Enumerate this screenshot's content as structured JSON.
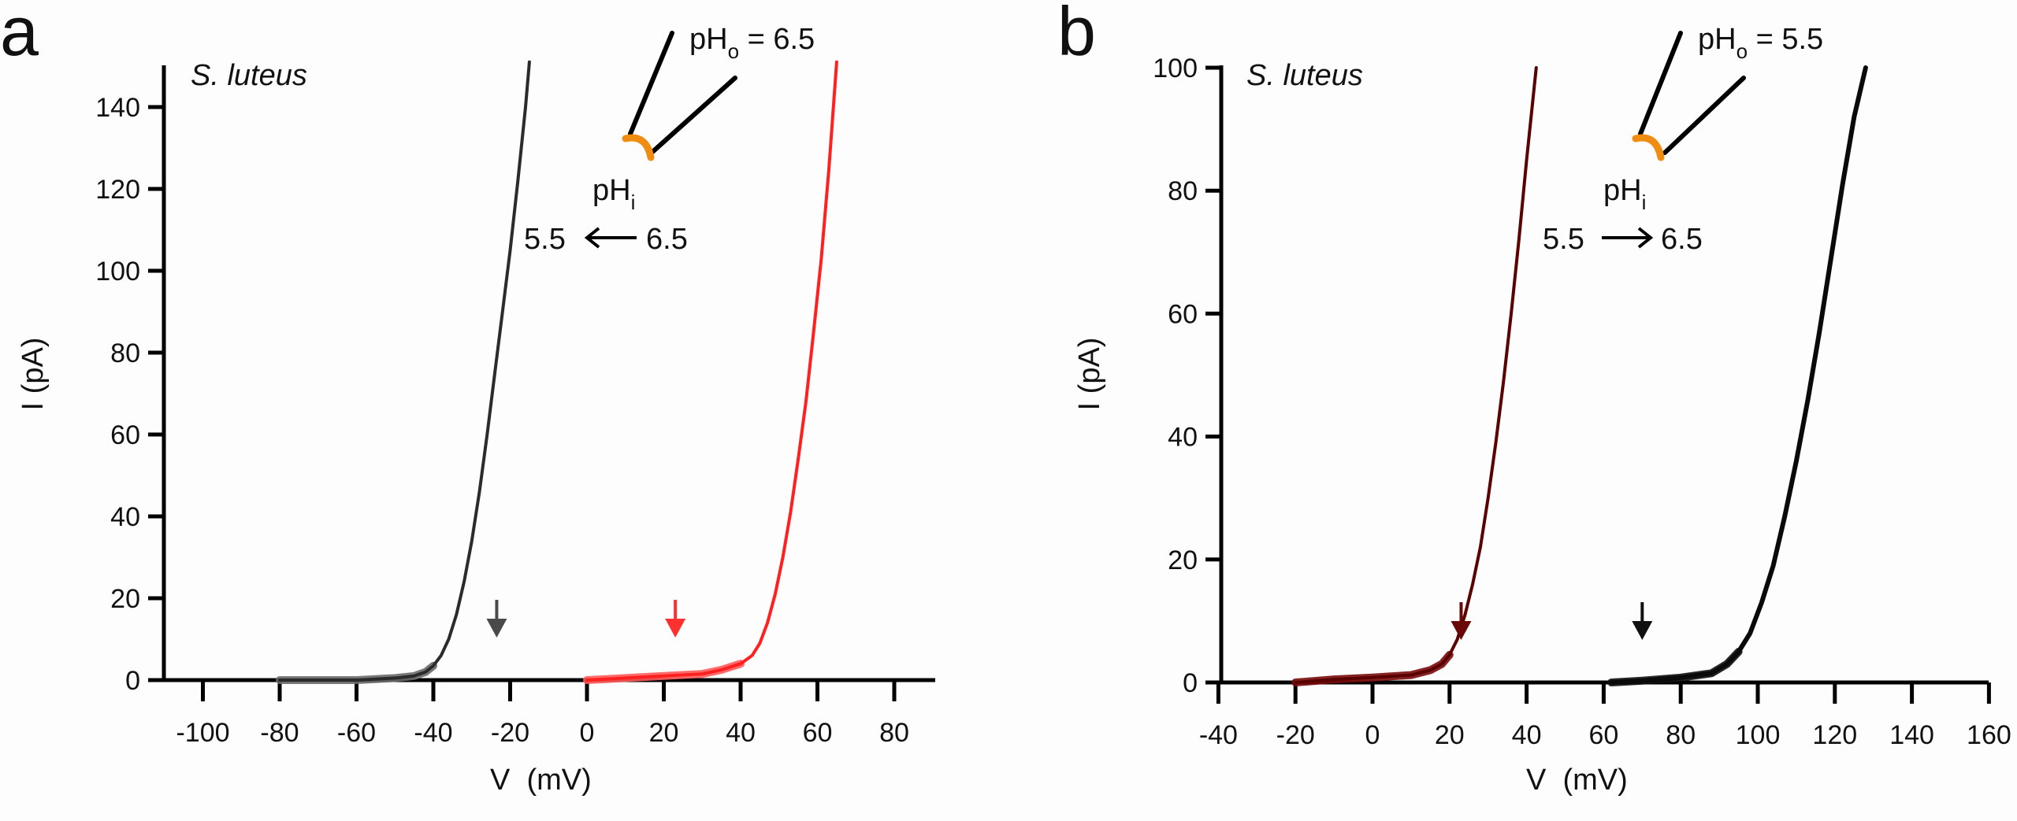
{
  "figure": {
    "panels": [
      "a",
      "b"
    ]
  },
  "chart_data": [
    {
      "type": "line",
      "panel_label": "a",
      "title": "",
      "annotation_species": "S. luteus",
      "xlabel": "V  (mV)",
      "ylabel": "I (pA)",
      "xlim": [
        -114,
        90
      ],
      "ylim": [
        0,
        150
      ],
      "xticks": [
        -100,
        -80,
        -60,
        -40,
        -20,
        0,
        20,
        40,
        60,
        80
      ],
      "yticks": [
        0,
        20,
        40,
        60,
        80,
        100,
        120,
        140
      ],
      "grid": false,
      "inset": {
        "pHo_label": "pH",
        "pHo_sub": "o",
        "pHo_value": " = 6.5",
        "pHi_label": "pH",
        "pHi_sub": "i",
        "from_value": "6.5",
        "to_value": "5.5",
        "arrow_direction": "left",
        "from_color": "#ff2a2a",
        "to_color": "#404040"
      },
      "series": [
        {
          "name": "pHi 5.5",
          "color": "#2b2b2b",
          "baseline_color": "#6a6a6a",
          "x": [
            -80,
            -70,
            -60,
            -50,
            -45,
            -42,
            -40,
            -38,
            -36,
            -34,
            -32,
            -30,
            -28,
            -26,
            -24,
            -22,
            -20,
            -18,
            -16,
            -15
          ],
          "y": [
            0,
            0,
            0,
            0.5,
            1,
            2,
            3.5,
            6,
            10,
            16,
            24,
            34,
            46,
            60,
            75,
            90,
            105,
            122,
            140,
            151
          ]
        },
        {
          "name": "pHi 6.5",
          "color": "#ff2020",
          "baseline_color": "#ff5a5a",
          "x": [
            0,
            10,
            20,
            30,
            35,
            40,
            43,
            45,
            47,
            49,
            51,
            53,
            55,
            57,
            59,
            61,
            63,
            65
          ],
          "y": [
            0,
            0.5,
            1,
            1.5,
            2.5,
            4,
            6,
            9,
            14,
            21,
            30,
            41,
            54,
            68,
            85,
            103,
            125,
            151
          ]
        }
      ],
      "markers": [
        {
          "name": "arrow-pHi-5.5",
          "x": -23.5,
          "color": "#4a4a4a"
        },
        {
          "name": "arrow-pHi-6.5",
          "x": 23,
          "color": "#ff3030"
        }
      ]
    },
    {
      "type": "line",
      "panel_label": "b",
      "title": "",
      "annotation_species": "S. luteus",
      "xlabel": "V  (mV)",
      "ylabel": "I (pA)",
      "xlim": [
        -44,
        160
      ],
      "ylim": [
        0,
        100
      ],
      "xticks": [
        -40,
        -20,
        0,
        20,
        40,
        60,
        80,
        100,
        120,
        140,
        160
      ],
      "yticks": [
        0,
        20,
        40,
        60,
        80,
        100
      ],
      "grid": false,
      "inset": {
        "pHo_label": "pH",
        "pHo_sub": "o",
        "pHo_value": " = 5.5",
        "pHi_label": "pH",
        "pHi_sub": "i",
        "from_value": "5.5",
        "to_value": "6.5",
        "arrow_direction": "right",
        "from_color": "#6a0a0a",
        "to_color": "#111111"
      },
      "series": [
        {
          "name": "pHi 5.5",
          "color": "#5a0000",
          "baseline_color": "#7a0a0a",
          "x": [
            -20,
            -10,
            0,
            10,
            15,
            18,
            20,
            22,
            24,
            26,
            28,
            30,
            32,
            34,
            36,
            38,
            40,
            42.5
          ],
          "y": [
            0,
            0.5,
            0.8,
            1.2,
            2,
            3,
            4.5,
            7,
            11,
            16,
            22,
            30,
            39,
            49,
            60,
            72,
            85,
            100
          ]
        },
        {
          "name": "pHi 6.5",
          "color": "#0a0a0a",
          "baseline_color": "#111111",
          "x": [
            62,
            70,
            80,
            88,
            92,
            95,
            98,
            101,
            104,
            107,
            110,
            113,
            116,
            119,
            122,
            125,
            128
          ],
          "y": [
            0,
            0.3,
            0.8,
            1.5,
            3,
            5,
            8,
            13,
            19,
            27,
            36,
            46,
            57,
            69,
            81,
            92,
            100
          ]
        }
      ],
      "markers": [
        {
          "name": "arrow-pHi-5.5",
          "x": 23,
          "color": "#6a0808"
        },
        {
          "name": "arrow-pHi-6.5",
          "x": 70,
          "color": "#111111"
        }
      ]
    }
  ]
}
